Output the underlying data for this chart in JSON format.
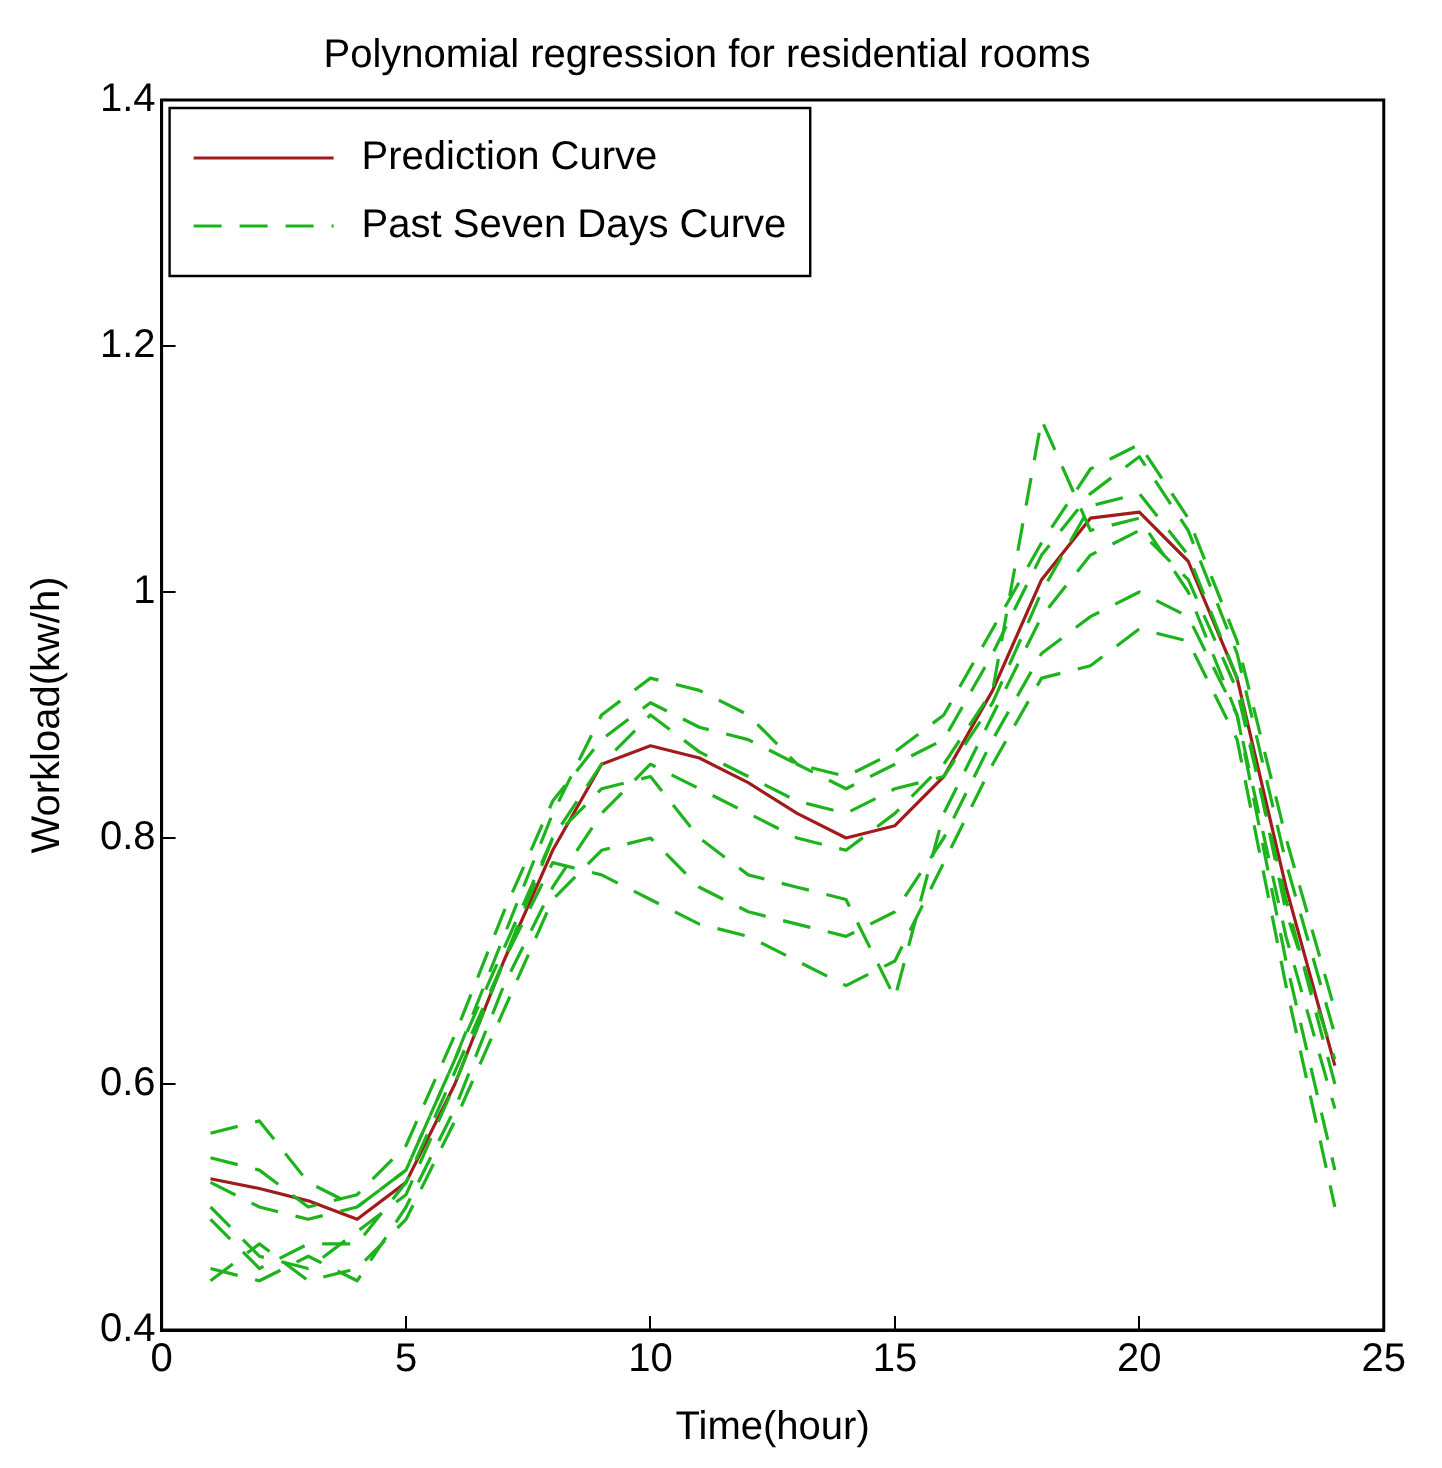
{
  "chart_data": {
    "type": "line",
    "title": "Polynomial regression for residential rooms",
    "xlabel": "Time(hour)",
    "ylabel": "Workload(kw/h)",
    "x": [
      1,
      2,
      3,
      4,
      5,
      6,
      7,
      8,
      9,
      10,
      11,
      12,
      13,
      14,
      15,
      16,
      17,
      18,
      19,
      20,
      21,
      22,
      23,
      24
    ],
    "xlim": [
      0,
      25
    ],
    "xticks": [
      0,
      5,
      10,
      15,
      20,
      25
    ],
    "ylim": [
      0.4,
      1.4
    ],
    "yticks": [
      0.4,
      0.6,
      0.8,
      1,
      1.2,
      1.4
    ],
    "grid": false,
    "legend": "top left",
    "marker": "none",
    "series": [
      {
        "name": "Prediction Curve",
        "color": "#a01c1c",
        "line_style": "solid",
        "values": [
          0.523,
          0.515,
          0.505,
          0.49,
          0.52,
          0.6,
          0.7,
          0.79,
          0.86,
          0.875,
          0.865,
          0.845,
          0.82,
          0.8,
          0.81,
          0.85,
          0.92,
          1.01,
          1.06,
          1.065,
          1.025,
          0.93,
          0.76,
          0.615
        ]
      },
      {
        "name": "Past Seven Days Curve",
        "color": "#1db31d",
        "line_style": "dashed",
        "values": [
          0.56,
          0.57,
          0.52,
          0.5,
          0.53,
          0.62,
          0.72,
          0.82,
          0.9,
          0.93,
          0.92,
          0.9,
          0.86,
          0.84,
          0.86,
          0.88,
          0.95,
          1.03,
          1.08,
          1.11,
          1.05,
          0.95,
          0.78,
          0.64
        ]
      },
      {
        "color": "#1db31d",
        "line_style": "dashed",
        "values": [
          0.45,
          0.44,
          0.46,
          0.44,
          0.5,
          0.58,
          0.68,
          0.76,
          0.82,
          0.86,
          0.84,
          0.82,
          0.8,
          0.79,
          0.82,
          0.86,
          0.92,
          1.14,
          1.05,
          1.06,
          1.0,
          0.9,
          0.72,
          0.58
        ]
      },
      {
        "color": "#1db31d",
        "line_style": "dashed",
        "values": [
          0.5,
          0.46,
          0.45,
          0.48,
          0.51,
          0.6,
          0.7,
          0.8,
          0.86,
          0.9,
          0.87,
          0.85,
          0.83,
          0.82,
          0.84,
          0.85,
          0.91,
          1.0,
          1.07,
          1.08,
          1.03,
          0.93,
          0.74,
          0.62
        ]
      },
      {
        "color": "#1db31d",
        "line_style": "dashed",
        "values": [
          0.54,
          0.53,
          0.5,
          0.51,
          0.55,
          0.64,
          0.74,
          0.83,
          0.88,
          0.91,
          0.89,
          0.88,
          0.86,
          0.85,
          0.87,
          0.9,
          0.97,
          1.04,
          1.1,
          1.12,
          1.06,
          0.96,
          0.8,
          0.66
        ]
      },
      {
        "color": "#1db31d",
        "line_style": "dashed",
        "values": [
          0.44,
          0.47,
          0.44,
          0.45,
          0.49,
          0.57,
          0.66,
          0.75,
          0.79,
          0.8,
          0.76,
          0.74,
          0.73,
          0.72,
          0.74,
          0.8,
          0.88,
          0.95,
          0.98,
          1.0,
          0.98,
          0.9,
          0.7,
          0.53
        ]
      },
      {
        "color": "#1db31d",
        "line_style": "dashed",
        "values": [
          0.49,
          0.45,
          0.47,
          0.47,
          0.52,
          0.61,
          0.7,
          0.78,
          0.77,
          0.75,
          0.73,
          0.72,
          0.7,
          0.68,
          0.7,
          0.78,
          0.86,
          0.93,
          0.94,
          0.97,
          0.96,
          0.88,
          0.68,
          0.5
        ]
      },
      {
        "color": "#1db31d",
        "line_style": "dashed",
        "values": [
          0.52,
          0.5,
          0.49,
          0.5,
          0.53,
          0.62,
          0.71,
          0.8,
          0.84,
          0.85,
          0.8,
          0.77,
          0.76,
          0.75,
          0.67,
          0.82,
          0.9,
          0.98,
          1.03,
          1.05,
          1.01,
          0.92,
          0.75,
          0.6
        ]
      }
    ]
  }
}
